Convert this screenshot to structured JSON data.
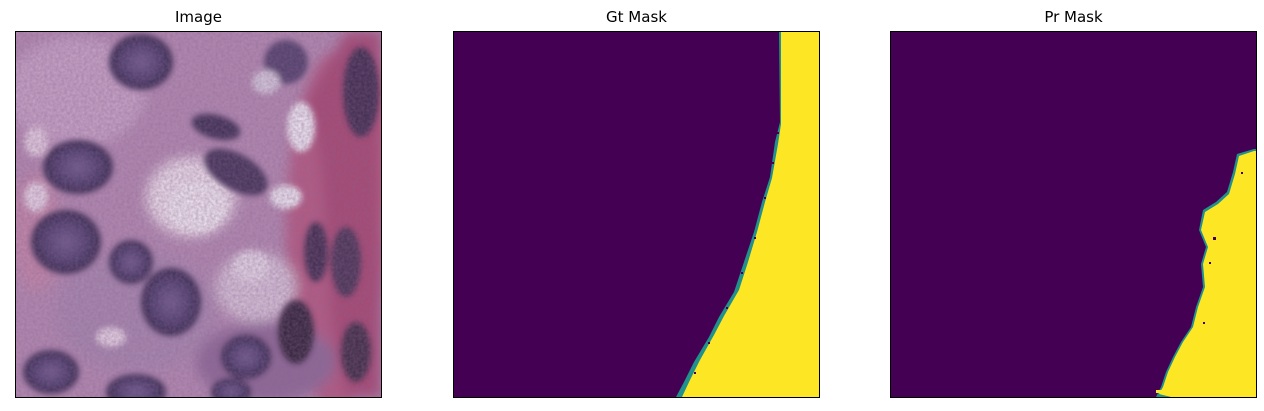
{
  "panels": [
    {
      "title": "Image",
      "kind": "histology-photo"
    },
    {
      "title": "Gt Mask",
      "kind": "segmentation-mask"
    },
    {
      "title": "Pr Mask",
      "kind": "segmentation-mask"
    }
  ],
  "colors": {
    "mask_background": "#440154",
    "mask_foreground": "#fde725",
    "mask_edge": "#21918c",
    "tissue_base": "#b98fb2",
    "nucleus": "#4a3d6e",
    "stroma": "#c45a7a"
  }
}
